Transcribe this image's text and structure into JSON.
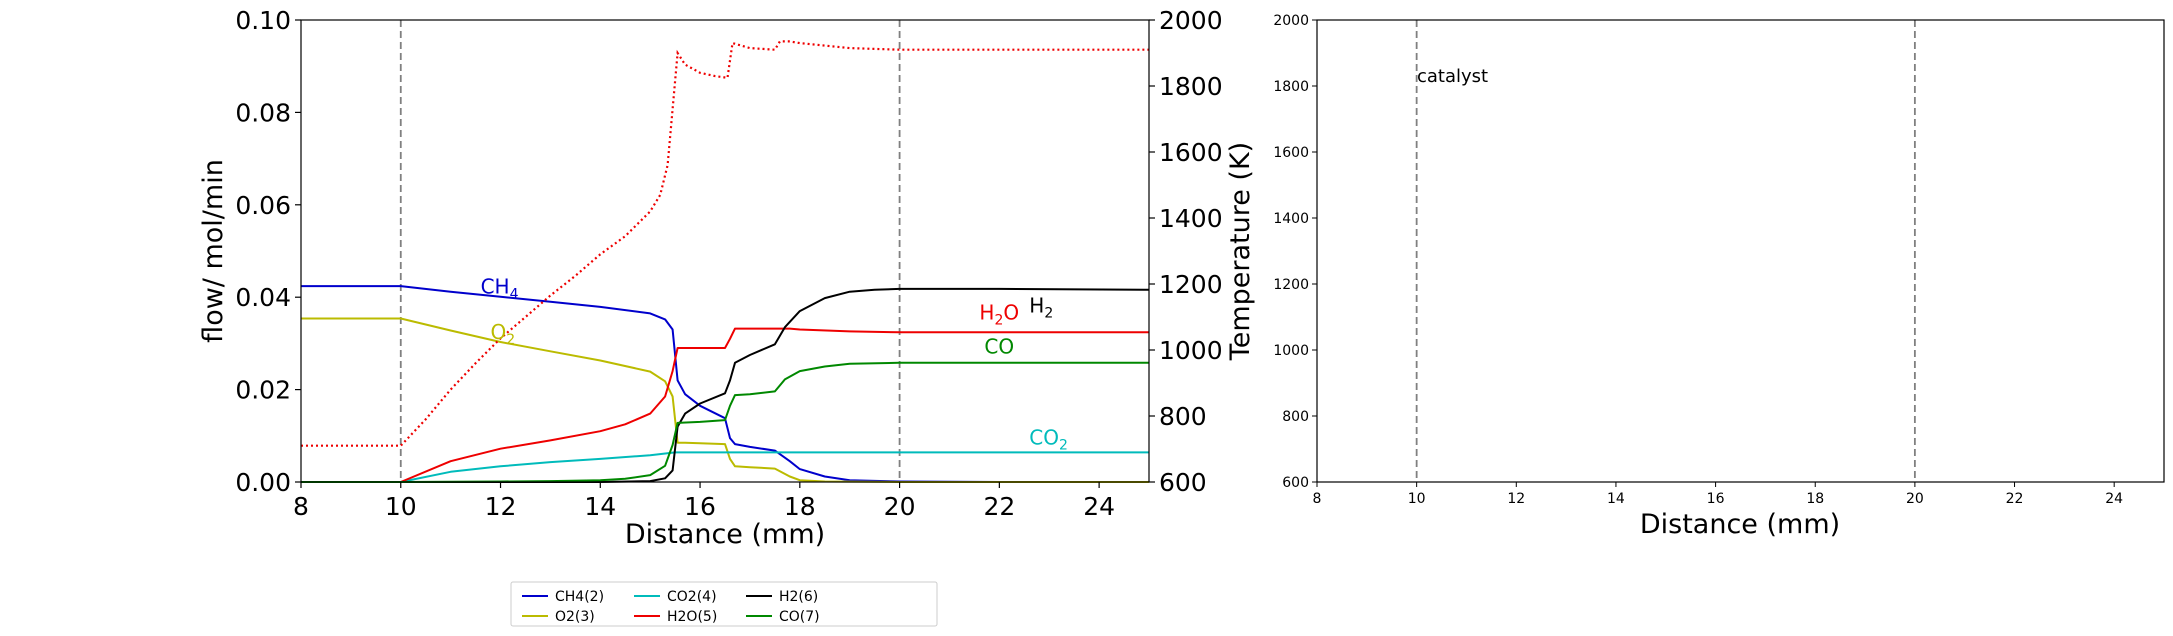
{
  "chart_data": [
    {
      "type": "line",
      "xlabel": "Distance (mm)",
      "ylabel": "flow/ mol/min",
      "y2label": "Temperature (K)",
      "xlim": [
        8,
        25
      ],
      "ylim": [
        0,
        0.1
      ],
      "y2lim": [
        600,
        2000
      ],
      "xticks": [
        "8",
        "10",
        "12",
        "14",
        "16",
        "18",
        "20",
        "22",
        "24"
      ],
      "yticks": [
        "0.00",
        "0.02",
        "0.04",
        "0.06",
        "0.08",
        "0.10"
      ],
      "y2ticks": [
        "600",
        "800",
        "1000",
        "1200",
        "1400",
        "1600",
        "1800",
        "2000"
      ],
      "vlines": [
        10,
        20
      ],
      "series": [
        {
          "name": "CH4(2)",
          "color": "#0000cc",
          "x": [
            8,
            10,
            11,
            12,
            13,
            14,
            15,
            15.3,
            15.45,
            15.55,
            15.7,
            16,
            16.5,
            16.6,
            16.7,
            17,
            17.5,
            17.8,
            18,
            18.5,
            19,
            20,
            22,
            25
          ],
          "y": [
            0.0424,
            0.0424,
            0.0412,
            0.0401,
            0.039,
            0.0379,
            0.0365,
            0.0352,
            0.033,
            0.022,
            0.019,
            0.0165,
            0.0138,
            0.0095,
            0.0082,
            0.0076,
            0.0068,
            0.0045,
            0.0028,
            0.0012,
            0.0004,
            0.0001,
            0,
            0
          ]
        },
        {
          "name": "O2(3)",
          "color": "#bbbb00",
          "x": [
            8,
            10,
            11,
            12,
            13,
            14,
            15,
            15.3,
            15.45,
            15.55,
            15.7,
            16,
            16.5,
            16.6,
            16.7,
            17,
            17.5,
            17.8,
            18,
            18.5,
            20,
            25
          ],
          "y": [
            0.0354,
            0.0354,
            0.0328,
            0.0303,
            0.0283,
            0.0263,
            0.0239,
            0.0218,
            0.0185,
            0.0085,
            0.0085,
            0.0084,
            0.0082,
            0.005,
            0.0034,
            0.0032,
            0.0029,
            0.0012,
            0.0004,
            0.0001,
            0,
            0
          ]
        },
        {
          "name": "CO2(4)",
          "color": "#00bbbb",
          "x": [
            8,
            10,
            11,
            12,
            13,
            14,
            15,
            15.5,
            16,
            18,
            20,
            25
          ],
          "y": [
            0,
            0,
            0.0022,
            0.0034,
            0.0043,
            0.005,
            0.0058,
            0.0064,
            0.0064,
            0.0064,
            0.0064,
            0.0064
          ]
        },
        {
          "name": "H2O(5)",
          "color": "#ee0000",
          "x": [
            8,
            10,
            11,
            12,
            13,
            14,
            14.5,
            15,
            15.3,
            15.45,
            15.55,
            16,
            16.5,
            16.6,
            16.7,
            17,
            17.5,
            17.8,
            18,
            19,
            20,
            22,
            25
          ],
          "y": [
            0,
            0,
            0.0045,
            0.0072,
            0.009,
            0.011,
            0.0125,
            0.0148,
            0.0185,
            0.024,
            0.029,
            0.029,
            0.029,
            0.031,
            0.0332,
            0.0332,
            0.0332,
            0.0332,
            0.033,
            0.0326,
            0.0324,
            0.0324,
            0.0324
          ]
        },
        {
          "name": "H2(6)",
          "color": "#000000",
          "x": [
            8,
            10,
            12,
            14,
            15,
            15.3,
            15.45,
            15.55,
            15.7,
            16,
            16.5,
            16.6,
            16.7,
            17,
            17.5,
            17.7,
            18,
            18.5,
            19,
            19.5,
            20,
            22,
            25
          ],
          "y": [
            0,
            0,
            0,
            0,
            0.0002,
            0.0008,
            0.0025,
            0.012,
            0.0148,
            0.017,
            0.0192,
            0.022,
            0.0258,
            0.0275,
            0.0298,
            0.0335,
            0.037,
            0.0398,
            0.0412,
            0.0416,
            0.0418,
            0.0418,
            0.0416
          ]
        },
        {
          "name": "CO(7)",
          "color": "#008800",
          "x": [
            8,
            10,
            12,
            13,
            14,
            14.5,
            15,
            15.3,
            15.45,
            15.55,
            16,
            16.5,
            16.6,
            16.7,
            17,
            17.5,
            17.7,
            18,
            18.5,
            19,
            20,
            22,
            25
          ],
          "y": [
            0,
            0,
            0.0001,
            0.0002,
            0.0004,
            0.0007,
            0.0015,
            0.0035,
            0.008,
            0.0128,
            0.013,
            0.0134,
            0.0165,
            0.0188,
            0.019,
            0.0196,
            0.0222,
            0.024,
            0.025,
            0.0256,
            0.0258,
            0.0258,
            0.0258
          ]
        }
      ],
      "temperature": {
        "color": "#ee0000",
        "style": "dotted",
        "x": [
          8,
          10,
          10.5,
          11,
          11.5,
          12,
          12.5,
          13,
          13.5,
          14,
          14.5,
          15,
          15.2,
          15.35,
          15.45,
          15.55,
          15.7,
          16,
          16.3,
          16.55,
          16.65,
          17,
          17.5,
          17.6,
          17.8,
          18,
          19,
          20,
          22,
          25
        ],
        "y": [
          710,
          710,
          790,
          880,
          960,
          1035,
          1100,
          1165,
          1225,
          1290,
          1345,
          1420,
          1470,
          1560,
          1730,
          1900,
          1865,
          1840,
          1830,
          1825,
          1930,
          1915,
          1910,
          1935,
          1935,
          1930,
          1915,
          1910,
          1910,
          1910
        ]
      },
      "annotations": [
        {
          "base": "CH",
          "sub": "4",
          "x": 11.6,
          "y": 0.0408,
          "color": "#0000cc"
        },
        {
          "base": "O",
          "sub": "2",
          "x": 11.8,
          "y": 0.031,
          "color": "#bbbb00"
        },
        {
          "base": "H",
          "sub": "2",
          "mid": "O",
          "x": 21.6,
          "y": 0.0352,
          "color": "#ee0000"
        },
        {
          "base": "H",
          "sub": "2",
          "x": 22.6,
          "y": 0.0367,
          "color": "#000000"
        },
        {
          "base": "CO",
          "sub": "",
          "x": 21.7,
          "y": 0.0278,
          "color": "#008800"
        },
        {
          "base": "CO",
          "sub": "2",
          "x": 22.6,
          "y": 0.0081,
          "color": "#00bbbb"
        }
      ],
      "legend": {
        "placement": "below"
      }
    },
    {
      "type": "line",
      "xlabel": "Distance (mm)",
      "xlim": [
        8,
        25
      ],
      "ylim": [
        600,
        2000
      ],
      "xticks": [
        "8",
        "10",
        "12",
        "14",
        "16",
        "18",
        "20",
        "22",
        "24"
      ],
      "yticks": [
        "600",
        "800",
        "1000",
        "1200",
        "1400",
        "1600",
        "1800",
        "2000"
      ],
      "vlines": [
        10,
        20
      ],
      "annotation": "catalyst"
    }
  ]
}
